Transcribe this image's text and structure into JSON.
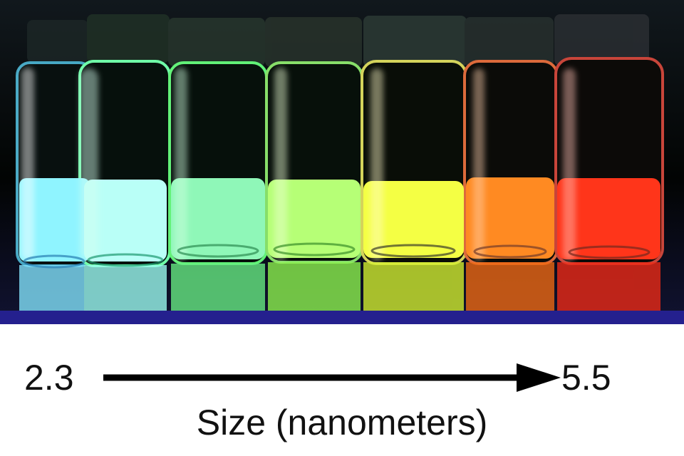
{
  "photo": {
    "subject": "fluorescent vials",
    "vials": [
      {
        "color": "#8ff4ff"
      },
      {
        "color": "#b9fff7"
      },
      {
        "color": "#8ff7b8"
      },
      {
        "color": "#b6ff76"
      },
      {
        "color": "#f4ff44"
      },
      {
        "color": "#ff8a22"
      },
      {
        "color": "#ff351a"
      }
    ]
  },
  "scale": {
    "min_label": "2.3",
    "max_label": "5.5",
    "axis_label": "Size (nanometers)"
  },
  "arrow_icon": "right-arrow-icon"
}
